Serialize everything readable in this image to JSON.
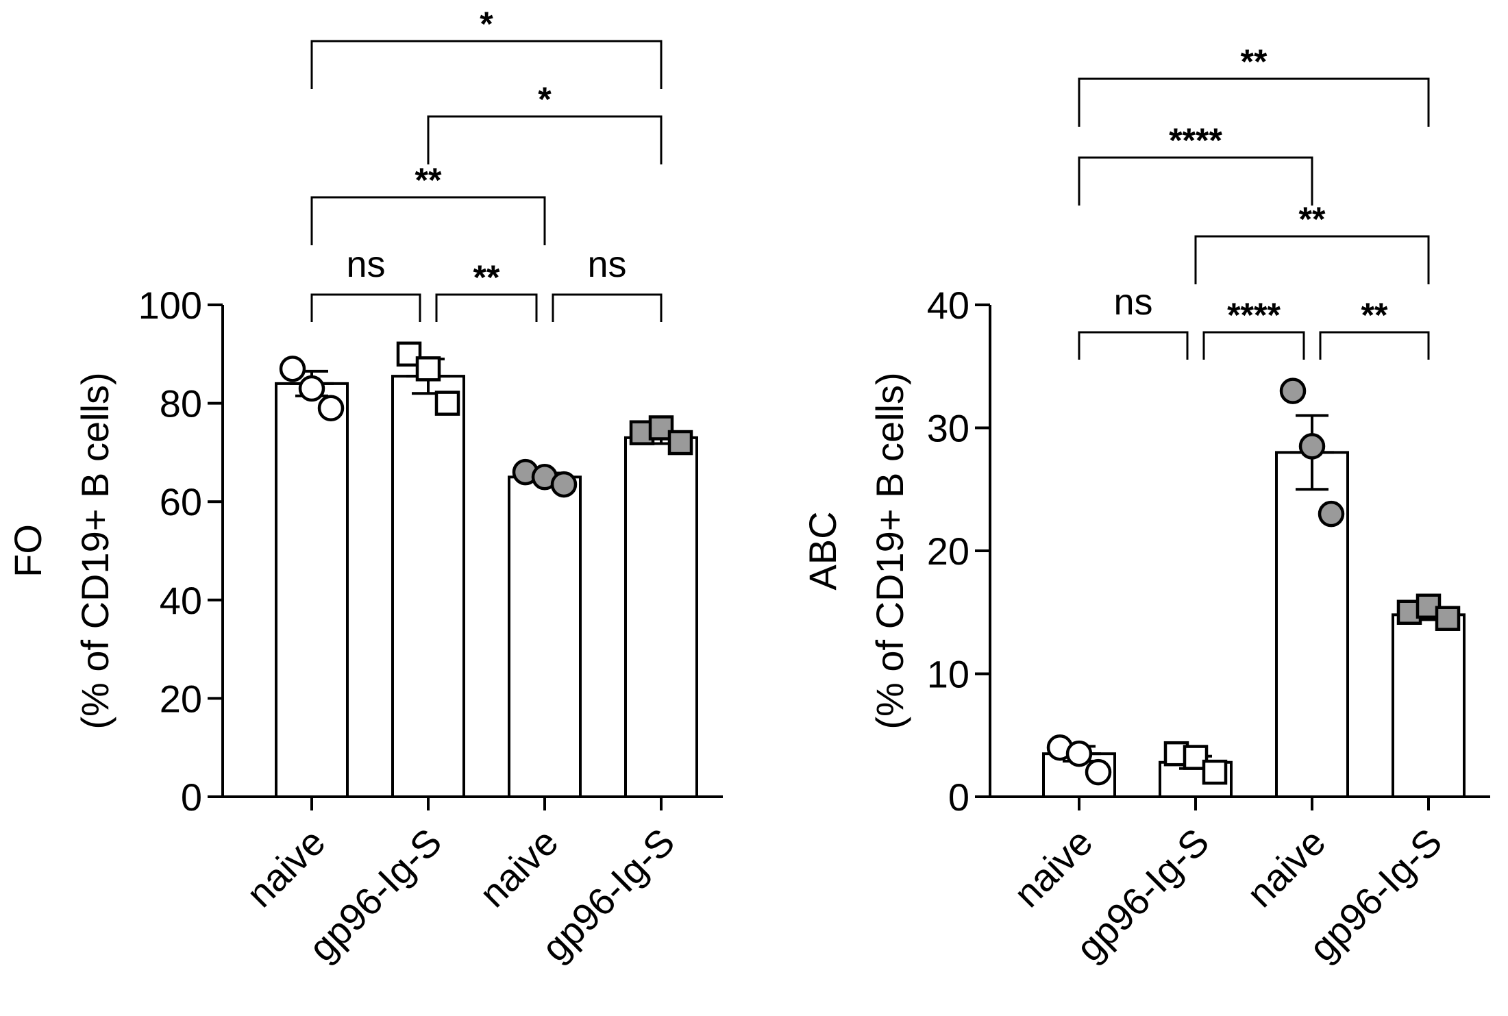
{
  "chart_data": [
    {
      "type": "bar",
      "panel": "left",
      "ylabel_line1": "FO",
      "ylabel_line2": "(% of CD19+ B cells)",
      "ylim": [
        0,
        100
      ],
      "yticks": [
        0,
        20,
        40,
        60,
        80,
        100
      ],
      "categories": [
        "naive",
        "gp96-Ig-S",
        "naive",
        "gp96-Ig-S"
      ],
      "values": [
        84,
        85.5,
        65,
        73
      ],
      "sem": [
        2.5,
        3.5,
        0.8,
        1.2
      ],
      "points": [
        {
          "marker": "circle",
          "fill": "#ffffff",
          "y": [
            87,
            83,
            79
          ]
        },
        {
          "marker": "square",
          "fill": "#ffffff",
          "y": [
            90,
            87,
            80
          ]
        },
        {
          "marker": "circle",
          "fill": "#9a9a9a",
          "y": [
            66,
            65,
            63.5
          ]
        },
        {
          "marker": "square",
          "fill": "#9a9a9a",
          "y": [
            74,
            75,
            72
          ]
        }
      ],
      "comparisons": [
        {
          "a": 0,
          "b": 1,
          "label": "ns",
          "level": 0
        },
        {
          "a": 1,
          "b": 2,
          "label": "**",
          "level": 0
        },
        {
          "a": 2,
          "b": 3,
          "label": "ns",
          "level": 0
        },
        {
          "a": 0,
          "b": 2,
          "label": "**",
          "level": 1
        },
        {
          "a": 1,
          "b": 3,
          "label": "*",
          "level": 2
        },
        {
          "a": 0,
          "b": 3,
          "label": "*",
          "level": 3
        }
      ]
    },
    {
      "type": "bar",
      "panel": "right",
      "ylabel_line1": "ABC",
      "ylabel_line2": "(% of CD19+ B cells)",
      "ylim": [
        0,
        40
      ],
      "yticks": [
        0,
        10,
        20,
        30,
        40
      ],
      "categories": [
        "naive",
        "gp96-Ig-S",
        "naive",
        "gp96-Ig-S"
      ],
      "values": [
        3.5,
        2.8,
        28,
        14.8
      ],
      "sem": [
        0.6,
        0.5,
        3,
        0.4
      ],
      "points": [
        {
          "marker": "circle",
          "fill": "#ffffff",
          "y": [
            4,
            3.5,
            2
          ]
        },
        {
          "marker": "square",
          "fill": "#ffffff",
          "y": [
            3.5,
            3.2,
            2
          ]
        },
        {
          "marker": "circle",
          "fill": "#9a9a9a",
          "y": [
            33,
            28.5,
            23
          ]
        },
        {
          "marker": "square",
          "fill": "#9a9a9a",
          "y": [
            15,
            15.5,
            14.5
          ]
        }
      ],
      "comparisons": [
        {
          "a": 0,
          "b": 1,
          "label": "ns",
          "level": 0
        },
        {
          "a": 1,
          "b": 2,
          "label": "****",
          "level": 0
        },
        {
          "a": 2,
          "b": 3,
          "label": "**",
          "level": 0
        },
        {
          "a": 1,
          "b": 3,
          "label": "**",
          "level": 1
        },
        {
          "a": 0,
          "b": 2,
          "label": "****",
          "level": 2
        },
        {
          "a": 0,
          "b": 3,
          "label": "**",
          "level": 3
        }
      ]
    }
  ]
}
